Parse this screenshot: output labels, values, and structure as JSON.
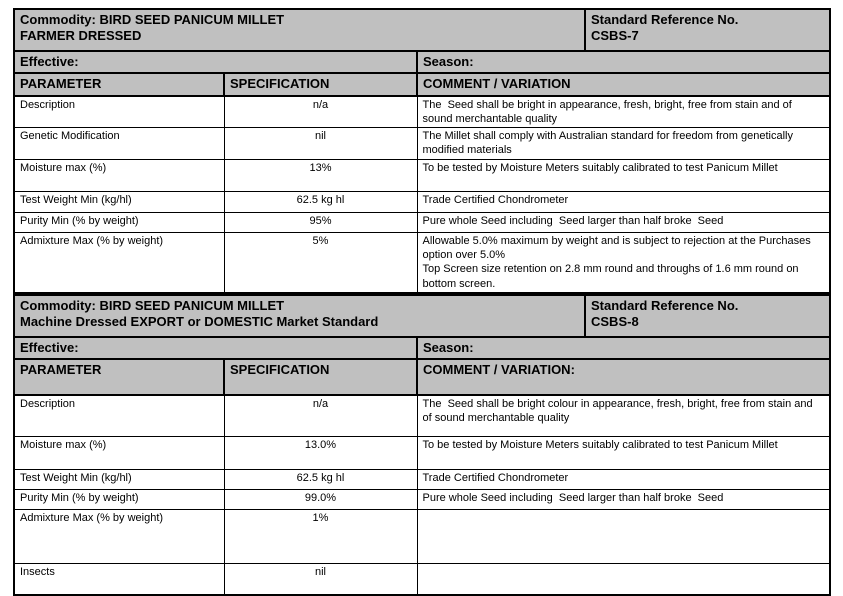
{
  "colors": {
    "header_bg": "#c0c0c0",
    "border": "#000000",
    "text": "#000000",
    "page_bg": "#ffffff"
  },
  "tables": [
    {
      "commodity_line1": "Commodity: BIRD SEED PANICUM MILLET",
      "commodity_line2": "FARMER DRESSED",
      "std_ref_label": "Standard Reference No.",
      "std_ref_no": "CSBS-7",
      "effective_label": "Effective:",
      "season_label": "Season:",
      "col_headers": [
        "PARAMETER",
        "SPECIFICATION",
        "COMMENT / VARIATION"
      ],
      "rows": [
        {
          "parameter": "Description",
          "specification": "n/a",
          "comment": "The  Seed shall be bright in appearance, fresh, bright, free from stain and of sound merchantable quality"
        },
        {
          "parameter": "Genetic Modification",
          "specification": "nil",
          "comment": "The Millet shall comply with Australian standard for freedom from genetically modified materials"
        },
        {
          "parameter": "Moisture max (%)",
          "specification": "13%",
          "comment": "To be tested by Moisture Meters suitably calibrated to test Panicum Millet"
        },
        {
          "parameter": "Test Weight Min (kg/hl)",
          "specification": "62.5 kg hl",
          "comment": "Trade Certified Chondrometer"
        },
        {
          "parameter": "Purity Min (% by weight)",
          "specification": "95%",
          "comment": "Pure whole Seed including  Seed larger than half broke  Seed"
        },
        {
          "parameter": "Admixture Max (% by weight)",
          "specification": "5%",
          "comment": "Allowable 5.0% maximum by weight and is subject to rejection at the Purchases option over 5.0%\nTop Screen size retention on 2.8 mm round and throughs of 1.6 mm round on bottom screen."
        }
      ]
    },
    {
      "commodity_line1": "Commodity: BIRD SEED PANICUM MILLET",
      "commodity_line2": "Machine Dressed EXPORT or DOMESTIC Market Standard",
      "std_ref_label": "Standard Reference No.",
      "std_ref_no": "CSBS-8",
      "effective_label": "Effective:",
      "season_label": "Season:",
      "col_headers": [
        "PARAMETER",
        "SPECIFICATION",
        "COMMENT / VARIATION:"
      ],
      "rows": [
        {
          "parameter": "Description",
          "specification": "n/a",
          "comment": "The  Seed shall be bright colour in appearance, fresh, bright, free from stain and of sound merchantable quality"
        },
        {
          "parameter": "Moisture max (%)",
          "specification": "13.0%",
          "comment": "To be tested by Moisture Meters suitably calibrated to test Panicum Millet"
        },
        {
          "parameter": "Test Weight Min (kg/hl)",
          "specification": "62.5 kg hl",
          "comment": "Trade Certified Chondrometer"
        },
        {
          "parameter": "Purity Min (% by weight)",
          "specification": "99.0%",
          "comment": "Pure whole Seed including  Seed larger than half broke  Seed"
        },
        {
          "parameter": "Admixture Max (% by weight)",
          "specification": "1%",
          "comment": ""
        },
        {
          "parameter": "Insects",
          "specification": "nil",
          "comment": ""
        }
      ]
    }
  ]
}
